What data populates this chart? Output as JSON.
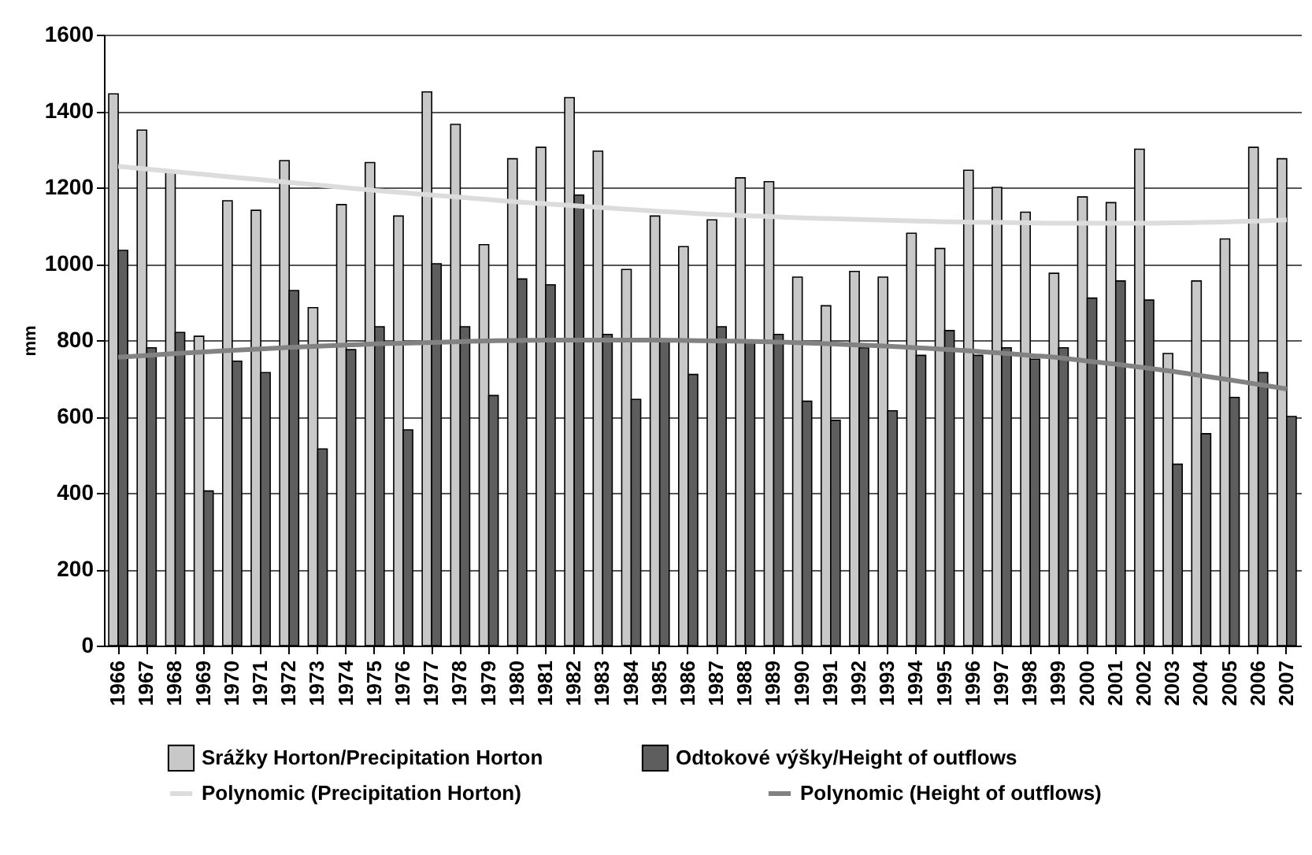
{
  "chart_data": {
    "type": "bar",
    "ylabel": "mm",
    "categories": [
      "1966",
      "1967",
      "1968",
      "1969",
      "1970",
      "1971",
      "1972",
      "1973",
      "1974",
      "1975",
      "1976",
      "1977",
      "1978",
      "1979",
      "1980",
      "1981",
      "1982",
      "1983",
      "1984",
      "1985",
      "1986",
      "1987",
      "1988",
      "1989",
      "1990",
      "1991",
      "1992",
      "1993",
      "1994",
      "1995",
      "1996",
      "1997",
      "1998",
      "1999",
      "2000",
      "2001",
      "2002",
      "2003",
      "2004",
      "2005",
      "2006",
      "2007"
    ],
    "series": [
      {
        "name": "Srážky Horton/Precipitation Horton",
        "color": "#c8c8c8",
        "values": [
          1445,
          1350,
          1240,
          810,
          1165,
          1140,
          1270,
          885,
          1155,
          1265,
          1125,
          1450,
          1365,
          1050,
          1275,
          1305,
          1435,
          1295,
          985,
          1125,
          1045,
          1115,
          1225,
          1215,
          965,
          890,
          980,
          965,
          1080,
          1040,
          1245,
          1200,
          1135,
          975,
          1175,
          1160,
          1300,
          765,
          955,
          1065,
          1305,
          1275
        ]
      },
      {
        "name": "Odtokové výšky/Height of outflows",
        "color": "#5e5e5e",
        "values": [
          1035,
          780,
          820,
          405,
          745,
          715,
          930,
          515,
          775,
          835,
          565,
          1000,
          835,
          655,
          960,
          945,
          1180,
          815,
          645,
          800,
          710,
          835,
          800,
          815,
          640,
          590,
          780,
          615,
          760,
          825,
          760,
          780,
          750,
          780,
          910,
          955,
          905,
          475,
          555,
          650,
          715,
          600
        ]
      },
      {
        "name": "Polynomic (Precipitation Horton)",
        "type": "line",
        "color": "#dcdcdc",
        "values": [
          1255,
          1248,
          1241,
          1234,
          1227,
          1220,
          1213,
          1206,
          1199,
          1192,
          1186,
          1180,
          1174,
          1168,
          1162,
          1157,
          1152,
          1147,
          1142,
          1137,
          1133,
          1129,
          1126,
          1123,
          1120,
          1118,
          1116,
          1114,
          1112,
          1110,
          1109,
          1108,
          1107,
          1106,
          1106,
          1106,
          1106,
          1107,
          1108,
          1110,
          1112,
          1115
        ]
      },
      {
        "name": "Polynomic (Height of outflows)",
        "type": "line",
        "color": "#828282",
        "values": [
          755,
          760,
          765,
          769,
          773,
          777,
          781,
          784,
          787,
          790,
          792,
          794,
          796,
          798,
          799,
          800,
          800,
          800,
          800,
          800,
          799,
          798,
          797,
          795,
          793,
          790,
          787,
          784,
          780,
          776,
          771,
          766,
          760,
          754,
          745,
          737,
          728,
          718,
          707,
          696,
          684,
          672
        ]
      }
    ],
    "ylim": [
      0,
      1600
    ],
    "yticks": [
      0,
      200,
      400,
      600,
      800,
      1000,
      1200,
      1400,
      1600
    ],
    "grid": "y",
    "legend": "bottom"
  }
}
